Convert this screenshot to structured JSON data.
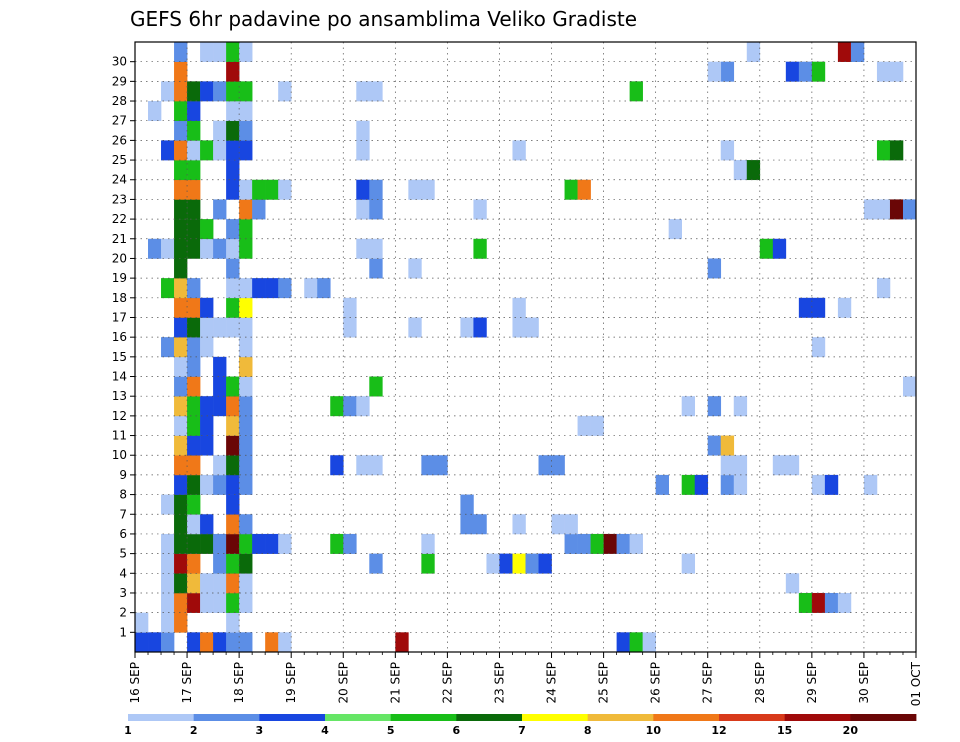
{
  "chart_data": {
    "type": "heatmap",
    "title": "GEFS 6hr padavine po ansamblima Veliko Gradiste",
    "xlabel": "",
    "ylabel": "",
    "x_tick_labels": [
      "16 SEP",
      "17 SEP",
      "18 SEP",
      "19 SEP",
      "20 SEP",
      "21 SEP",
      "22 SEP",
      "23 SEP",
      "24 SEP",
      "25 SEP",
      "26 SEP",
      "27 SEP",
      "28 SEP",
      "29 SEP",
      "30 SEP",
      "01 OCT"
    ],
    "y_tick_labels": [
      "1",
      "2",
      "3",
      "4",
      "5",
      "6",
      "7",
      "8",
      "9",
      "10",
      "11",
      "12",
      "13",
      "14",
      "15",
      "16",
      "17",
      "18",
      "19",
      "20",
      "21",
      "22",
      "23",
      "24",
      "25",
      "26",
      "27",
      "28",
      "29",
      "30"
    ],
    "xlim": [
      0,
      60
    ],
    "ylim": [
      0,
      30
    ],
    "grid": true,
    "colorbar_labels": [
      "1",
      "2",
      "3",
      "4",
      "5",
      "6",
      "7",
      "8",
      "10",
      "12",
      "15",
      "20"
    ],
    "colorbar_colors": [
      "#aec8f6",
      "#5c8ee6",
      "#1846e0",
      "#66e666",
      "#18be18",
      "#0a6a0a",
      "#ffff00",
      "#f0ba3a",
      "#f07818",
      "#d83a1a",
      "#a00a0a",
      "#6a0606"
    ],
    "cells": [
      [
        0,
        0,
        3
      ],
      [
        1,
        0,
        3
      ],
      [
        2,
        0,
        2
      ],
      [
        4,
        0,
        3
      ],
      [
        5,
        0,
        10
      ],
      [
        6,
        0,
        3
      ],
      [
        7,
        0,
        2
      ],
      [
        8,
        0,
        2
      ],
      [
        10,
        0,
        10
      ],
      [
        11,
        0,
        1
      ],
      [
        20,
        0,
        15
      ],
      [
        37,
        0,
        3
      ],
      [
        38,
        0,
        5
      ],
      [
        39,
        0,
        1
      ],
      [
        0,
        1,
        1
      ],
      [
        2,
        1,
        1
      ],
      [
        3,
        1,
        10
      ],
      [
        7,
        1,
        1
      ],
      [
        2,
        2,
        1
      ],
      [
        3,
        2,
        10
      ],
      [
        4,
        2,
        15
      ],
      [
        5,
        2,
        1
      ],
      [
        6,
        2,
        1
      ],
      [
        7,
        2,
        5
      ],
      [
        8,
        2,
        1
      ],
      [
        51,
        2,
        5
      ],
      [
        52,
        2,
        15
      ],
      [
        53,
        2,
        2
      ],
      [
        54,
        2,
        1
      ],
      [
        2,
        3,
        1
      ],
      [
        3,
        3,
        6
      ],
      [
        4,
        3,
        8
      ],
      [
        5,
        3,
        1
      ],
      [
        6,
        3,
        1
      ],
      [
        7,
        3,
        10
      ],
      [
        8,
        3,
        1
      ],
      [
        50,
        3,
        1
      ],
      [
        2,
        4,
        1
      ],
      [
        3,
        4,
        15
      ],
      [
        4,
        4,
        10
      ],
      [
        6,
        4,
        2
      ],
      [
        7,
        4,
        5
      ],
      [
        8,
        4,
        6
      ],
      [
        18,
        4,
        2
      ],
      [
        22,
        4,
        5
      ],
      [
        27,
        4,
        1
      ],
      [
        28,
        4,
        3
      ],
      [
        29,
        4,
        7
      ],
      [
        30,
        4,
        2
      ],
      [
        31,
        4,
        3
      ],
      [
        42,
        4,
        1
      ],
      [
        2,
        5,
        1
      ],
      [
        3,
        5,
        6
      ],
      [
        4,
        5,
        6
      ],
      [
        5,
        5,
        6
      ],
      [
        6,
        5,
        2
      ],
      [
        7,
        5,
        20
      ],
      [
        8,
        5,
        5
      ],
      [
        9,
        5,
        3
      ],
      [
        10,
        5,
        3
      ],
      [
        11,
        5,
        1
      ],
      [
        15,
        5,
        5
      ],
      [
        16,
        5,
        2
      ],
      [
        22,
        5,
        1
      ],
      [
        33,
        5,
        2
      ],
      [
        34,
        5,
        2
      ],
      [
        35,
        5,
        5
      ],
      [
        36,
        5,
        20
      ],
      [
        37,
        5,
        2
      ],
      [
        38,
        5,
        1
      ],
      [
        3,
        6,
        6
      ],
      [
        4,
        6,
        1
      ],
      [
        5,
        6,
        3
      ],
      [
        7,
        6,
        10
      ],
      [
        8,
        6,
        2
      ],
      [
        25,
        6,
        2
      ],
      [
        26,
        6,
        2
      ],
      [
        29,
        6,
        1
      ],
      [
        32,
        6,
        1
      ],
      [
        33,
        6,
        1
      ],
      [
        2,
        7,
        1
      ],
      [
        3,
        7,
        6
      ],
      [
        4,
        7,
        5
      ],
      [
        7,
        7,
        3
      ],
      [
        25,
        7,
        2
      ],
      [
        3,
        8,
        3
      ],
      [
        4,
        8,
        6
      ],
      [
        5,
        8,
        1
      ],
      [
        6,
        8,
        2
      ],
      [
        7,
        8,
        3
      ],
      [
        8,
        8,
        2
      ],
      [
        40,
        8,
        2
      ],
      [
        42,
        8,
        5
      ],
      [
        43,
        8,
        3
      ],
      [
        45,
        8,
        2
      ],
      [
        46,
        8,
        1
      ],
      [
        52,
        8,
        1
      ],
      [
        53,
        8,
        3
      ],
      [
        56,
        8,
        1
      ],
      [
        3,
        9,
        10
      ],
      [
        4,
        9,
        10
      ],
      [
        6,
        9,
        1
      ],
      [
        7,
        9,
        6
      ],
      [
        8,
        9,
        2
      ],
      [
        15,
        9,
        3
      ],
      [
        17,
        9,
        1
      ],
      [
        18,
        9,
        1
      ],
      [
        22,
        9,
        2
      ],
      [
        23,
        9,
        2
      ],
      [
        31,
        9,
        2
      ],
      [
        32,
        9,
        2
      ],
      [
        45,
        9,
        1
      ],
      [
        46,
        9,
        1
      ],
      [
        49,
        9,
        1
      ],
      [
        50,
        9,
        1
      ],
      [
        3,
        10,
        8
      ],
      [
        4,
        10,
        3
      ],
      [
        5,
        10,
        3
      ],
      [
        7,
        10,
        20
      ],
      [
        8,
        10,
        2
      ],
      [
        44,
        10,
        2
      ],
      [
        45,
        10,
        8
      ],
      [
        3,
        11,
        1
      ],
      [
        4,
        11,
        5
      ],
      [
        5,
        11,
        3
      ],
      [
        7,
        11,
        8
      ],
      [
        8,
        11,
        2
      ],
      [
        34,
        11,
        1
      ],
      [
        35,
        11,
        1
      ],
      [
        3,
        12,
        8
      ],
      [
        4,
        12,
        5
      ],
      [
        5,
        12,
        3
      ],
      [
        6,
        12,
        3
      ],
      [
        7,
        12,
        10
      ],
      [
        8,
        12,
        2
      ],
      [
        15,
        12,
        5
      ],
      [
        16,
        12,
        2
      ],
      [
        17,
        12,
        1
      ],
      [
        42,
        12,
        1
      ],
      [
        44,
        12,
        2
      ],
      [
        46,
        12,
        1
      ],
      [
        3,
        13,
        2
      ],
      [
        4,
        13,
        10
      ],
      [
        6,
        13,
        3
      ],
      [
        7,
        13,
        5
      ],
      [
        8,
        13,
        1
      ],
      [
        18,
        13,
        5
      ],
      [
        59,
        13,
        1
      ],
      [
        3,
        14,
        1
      ],
      [
        4,
        14,
        2
      ],
      [
        6,
        14,
        3
      ],
      [
        8,
        14,
        8
      ],
      [
        8,
        14,
        8
      ],
      [
        2,
        15,
        2
      ],
      [
        3,
        15,
        8
      ],
      [
        4,
        15,
        2
      ],
      [
        5,
        15,
        1
      ],
      [
        8,
        15,
        1
      ],
      [
        52,
        15,
        1
      ],
      [
        3,
        16,
        3
      ],
      [
        4,
        16,
        6
      ],
      [
        5,
        16,
        1
      ],
      [
        6,
        16,
        1
      ],
      [
        7,
        16,
        1
      ],
      [
        8,
        16,
        1
      ],
      [
        16,
        16,
        1
      ],
      [
        21,
        16,
        1
      ],
      [
        25,
        16,
        1
      ],
      [
        26,
        16,
        3
      ],
      [
        29,
        16,
        1
      ],
      [
        30,
        16,
        1
      ],
      [
        3,
        17,
        10
      ],
      [
        4,
        17,
        10
      ],
      [
        5,
        17,
        3
      ],
      [
        7,
        17,
        5
      ],
      [
        8,
        17,
        7
      ],
      [
        16,
        17,
        1
      ],
      [
        29,
        17,
        1
      ],
      [
        51,
        17,
        3
      ],
      [
        52,
        17,
        3
      ],
      [
        54,
        17,
        1
      ],
      [
        2,
        18,
        5
      ],
      [
        3,
        18,
        8
      ],
      [
        4,
        18,
        2
      ],
      [
        7,
        18,
        1
      ],
      [
        8,
        18,
        1
      ],
      [
        9,
        18,
        3
      ],
      [
        10,
        18,
        3
      ],
      [
        11,
        18,
        2
      ],
      [
        13,
        18,
        1
      ],
      [
        14,
        18,
        2
      ],
      [
        57,
        18,
        1
      ],
      [
        3,
        19,
        6
      ],
      [
        7,
        19,
        2
      ],
      [
        18,
        19,
        2
      ],
      [
        21,
        19,
        1
      ],
      [
        44,
        19,
        2
      ],
      [
        1,
        20,
        2
      ],
      [
        2,
        20,
        1
      ],
      [
        3,
        20,
        6
      ],
      [
        4,
        20,
        6
      ],
      [
        5,
        20,
        1
      ],
      [
        6,
        20,
        2
      ],
      [
        7,
        20,
        1
      ],
      [
        8,
        20,
        5
      ],
      [
        17,
        20,
        1
      ],
      [
        18,
        20,
        1
      ],
      [
        26,
        20,
        5
      ],
      [
        48,
        20,
        5
      ],
      [
        49,
        20,
        3
      ],
      [
        3,
        21,
        6
      ],
      [
        4,
        21,
        6
      ],
      [
        5,
        21,
        5
      ],
      [
        7,
        21,
        2
      ],
      [
        8,
        21,
        5
      ],
      [
        41,
        21,
        1
      ],
      [
        3,
        22,
        6
      ],
      [
        4,
        22,
        6
      ],
      [
        6,
        22,
        2
      ],
      [
        8,
        22,
        10
      ],
      [
        9,
        22,
        2
      ],
      [
        17,
        22,
        1
      ],
      [
        18,
        22,
        2
      ],
      [
        26,
        22,
        1
      ],
      [
        56,
        22,
        1
      ],
      [
        57,
        22,
        1
      ],
      [
        58,
        22,
        20
      ],
      [
        59,
        22,
        2
      ],
      [
        3,
        23,
        10
      ],
      [
        4,
        23,
        10
      ],
      [
        7,
        23,
        3
      ],
      [
        8,
        23,
        1
      ],
      [
        9,
        23,
        5
      ],
      [
        10,
        23,
        5
      ],
      [
        11,
        23,
        1
      ],
      [
        17,
        23,
        3
      ],
      [
        18,
        23,
        2
      ],
      [
        21,
        23,
        1
      ],
      [
        22,
        23,
        1
      ],
      [
        33,
        23,
        5
      ],
      [
        34,
        23,
        10
      ],
      [
        3,
        24,
        5
      ],
      [
        4,
        24,
        5
      ],
      [
        7,
        24,
        3
      ],
      [
        46,
        24,
        1
      ],
      [
        47,
        24,
        6
      ],
      [
        2,
        25,
        3
      ],
      [
        3,
        25,
        10
      ],
      [
        4,
        25,
        1
      ],
      [
        5,
        25,
        5
      ],
      [
        6,
        25,
        1
      ],
      [
        7,
        25,
        3
      ],
      [
        8,
        25,
        3
      ],
      [
        17,
        25,
        1
      ],
      [
        29,
        25,
        1
      ],
      [
        45,
        25,
        1
      ],
      [
        57,
        25,
        5
      ],
      [
        58,
        25,
        6
      ],
      [
        3,
        26,
        2
      ],
      [
        4,
        26,
        5
      ],
      [
        6,
        26,
        1
      ],
      [
        7,
        26,
        6
      ],
      [
        8,
        26,
        2
      ],
      [
        17,
        26,
        1
      ],
      [
        1,
        27,
        1
      ],
      [
        3,
        27,
        5
      ],
      [
        4,
        27,
        3
      ],
      [
        7,
        27,
        1
      ],
      [
        8,
        27,
        1
      ],
      [
        2,
        28,
        1
      ],
      [
        3,
        28,
        10
      ],
      [
        4,
        28,
        6
      ],
      [
        5,
        28,
        3
      ],
      [
        6,
        28,
        2
      ],
      [
        7,
        28,
        5
      ],
      [
        8,
        28,
        5
      ],
      [
        11,
        28,
        1
      ],
      [
        17,
        28,
        1
      ],
      [
        18,
        28,
        1
      ],
      [
        38,
        28,
        5
      ],
      [
        3,
        29,
        10
      ],
      [
        7,
        29,
        15
      ],
      [
        45,
        29,
        2
      ],
      [
        44,
        29,
        1
      ],
      [
        50,
        29,
        3
      ],
      [
        51,
        29,
        2
      ],
      [
        52,
        29,
        5
      ],
      [
        57,
        29,
        1
      ],
      [
        58,
        29,
        1
      ],
      [
        3,
        30,
        2
      ],
      [
        5,
        30,
        1
      ],
      [
        6,
        30,
        1
      ],
      [
        7,
        30,
        5
      ],
      [
        8,
        30,
        1
      ],
      [
        47,
        30,
        1
      ],
      [
        54,
        30,
        15
      ],
      [
        55,
        30,
        2
      ]
    ]
  }
}
